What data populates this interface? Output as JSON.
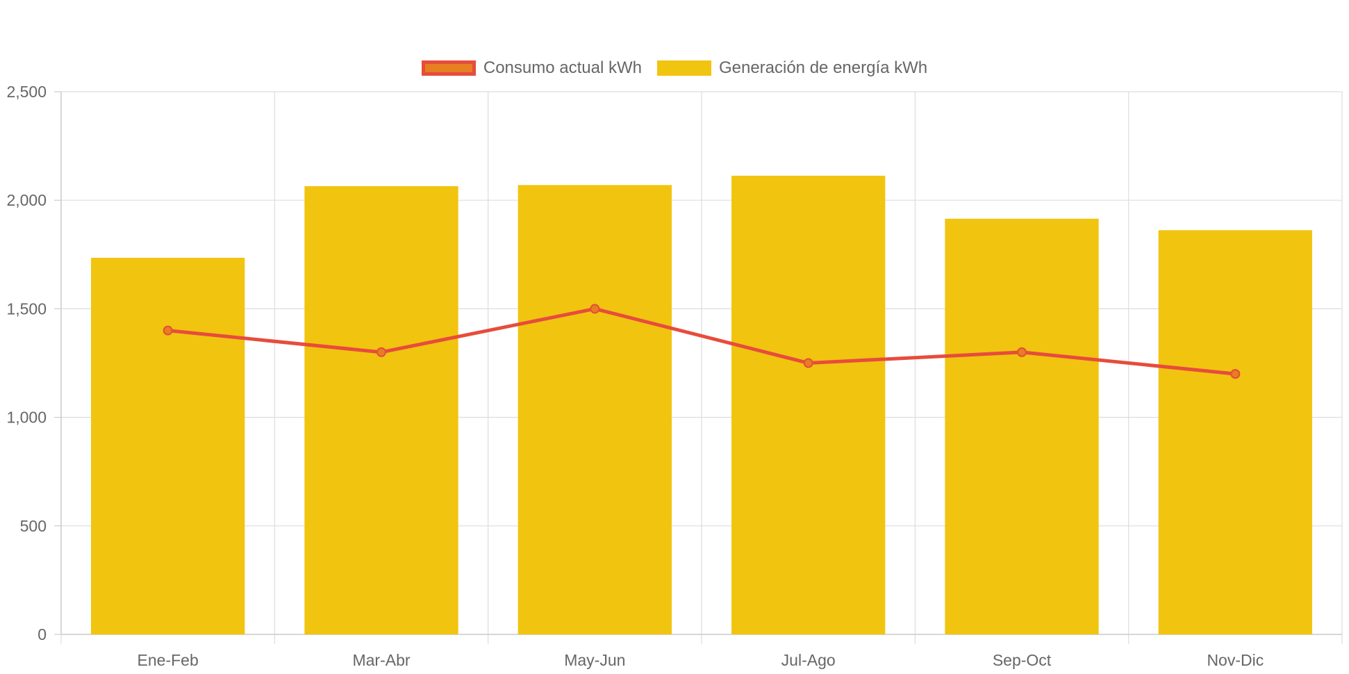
{
  "chart_data": {
    "type": "bar",
    "categories": [
      "Ene-Feb",
      "Mar-Abr",
      "May-Jun",
      "Jul-Ago",
      "Sep-Oct",
      "Nov-Dic"
    ],
    "series": [
      {
        "name": "Consumo actual kWh",
        "type": "line",
        "values": [
          1400,
          1300,
          1500,
          1250,
          1300,
          1200
        ],
        "color": "#e74c3c",
        "point_color": "#e67e22"
      },
      {
        "name": "Generación de energía kWh",
        "type": "bar",
        "values": [
          1735,
          2065,
          2070,
          2113,
          1915,
          1862
        ],
        "color": "#f1c40f"
      }
    ],
    "ylim": [
      0,
      2500
    ],
    "yticks": [
      "0",
      "500",
      "1,000",
      "1,500",
      "2,000",
      "2,500"
    ],
    "grid": true,
    "legend_position": "top-center"
  }
}
